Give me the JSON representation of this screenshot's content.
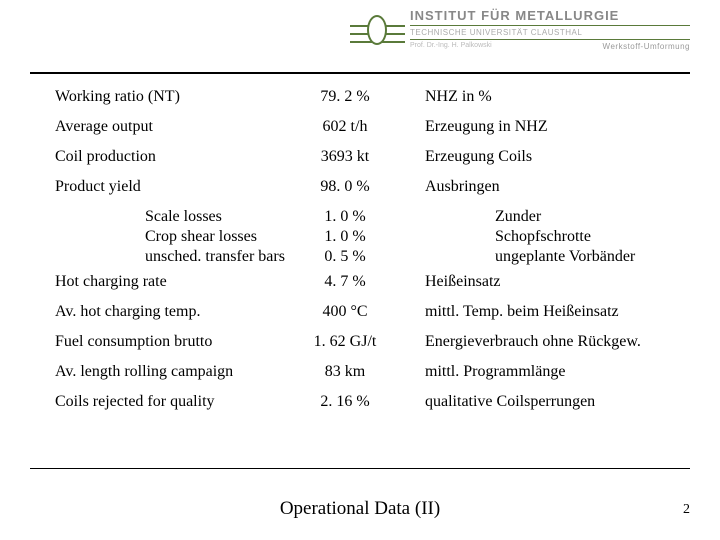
{
  "header": {
    "inst": "INSTITUT FÜR METALLURGIE",
    "sub": "TECHNISCHE UNIVERSITÄT CLAUSTHAL",
    "prof": "Prof. Dr.-Ing. H. Palkowski",
    "wu": "Werkstoff-Umformung"
  },
  "rows": [
    {
      "label": "Working ratio (NT)",
      "value": "79. 2 %",
      "de": "NHZ in %"
    },
    {
      "label": "Average output",
      "value": "602 t/h",
      "de": "Erzeugung in NHZ"
    },
    {
      "label": "Coil production",
      "value": "3693 kt",
      "de": "Erzeugung Coils"
    },
    {
      "label": "Product yield",
      "value": "98. 0 %",
      "de": "Ausbringen"
    }
  ],
  "sub": [
    {
      "label": "Scale losses",
      "value": "1. 0 %",
      "de": "Zunder"
    },
    {
      "label": "Crop shear losses",
      "value": "1. 0 %",
      "de": "Schopfschrotte"
    },
    {
      "label": "unsched. transfer bars",
      "value": "0. 5 %",
      "de": "ungeplante Vorbänder"
    }
  ],
  "rows2": [
    {
      "label": "Hot charging rate",
      "value": "4. 7 %",
      "de": "Heißeinsatz"
    },
    {
      "label": "Av. hot charging temp.",
      "value": "400 °C",
      "de": "mittl. Temp. beim Heißeinsatz"
    },
    {
      "label": "Fuel consumption brutto",
      "value": "1. 62 GJ/t",
      "de": "Energieverbrauch ohne Rückgew."
    },
    {
      "label": "Av. length rolling campaign",
      "value": "83 km",
      "de": "mittl. Programmlänge"
    },
    {
      "label": "Coils rejected for quality",
      "value": "2. 16 %",
      "de": "qualitative Coilsperrungen"
    }
  ],
  "footer": "Operational Data (II)",
  "page": "2"
}
